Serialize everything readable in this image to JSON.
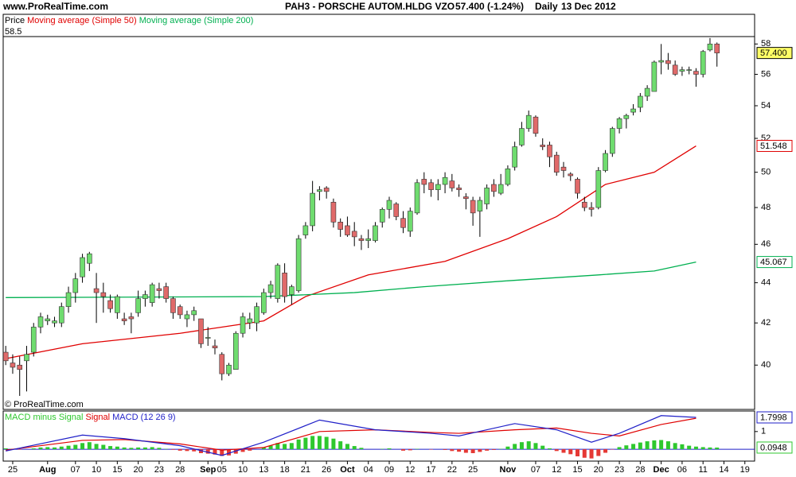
{
  "header": {
    "site": "www.ProRealTime.com",
    "symbol": "PAH3 - PORSCHE AUTOM.HLDG VZO",
    "quote": "57.400 (-1.24%)",
    "period": "Daily",
    "date": "13 Dec 2012"
  },
  "chart_data": [
    {
      "type": "candlestick",
      "price_name": "Price",
      "watermark": "© ProRealTime.com",
      "log_scale": true,
      "up_color": "#6fdc6f",
      "down_color": "#e06a6a",
      "ylim": [
        38,
        58.5
      ],
      "yticks": [
        40,
        42,
        44,
        46,
        48,
        50,
        52,
        54,
        56,
        58
      ],
      "last_label": {
        "value": 57.4,
        "label": "57.400"
      },
      "categories": [
        null,
        "25",
        null,
        null,
        null,
        null,
        "Aug",
        null,
        null,
        null,
        "07",
        null,
        null,
        "10",
        null,
        null,
        "15",
        null,
        null,
        "20",
        null,
        null,
        "23",
        null,
        null,
        "28",
        null,
        null,
        null,
        "Sep",
        null,
        "05",
        null,
        null,
        "10",
        null,
        null,
        "13",
        null,
        null,
        "18",
        null,
        null,
        "21",
        null,
        null,
        "26",
        null,
        null,
        "Oct",
        null,
        null,
        "04",
        null,
        null,
        "09",
        null,
        null,
        "12",
        null,
        null,
        "17",
        null,
        null,
        "22",
        null,
        null,
        "25",
        null,
        null,
        null,
        null,
        "Nov",
        null,
        null,
        null,
        "07",
        null,
        null,
        "12",
        null,
        null,
        "15",
        null,
        null,
        "20",
        null,
        null,
        "23",
        null,
        null,
        "28",
        null,
        null,
        "Dec",
        null,
        null,
        "06",
        null,
        null,
        "11",
        null,
        null,
        "14",
        null,
        null,
        "19"
      ],
      "open": [
        40.6,
        40.1,
        40.0,
        40.2,
        40.6,
        41.8,
        42.1,
        42.0,
        42.0,
        42.8,
        43.5,
        44.3,
        45.0,
        43.7,
        43.5,
        43.1,
        42.5,
        42.2,
        42.3,
        42.5,
        43.2,
        43.0,
        43.7,
        43.8,
        43.2,
        42.8,
        42.2,
        42.4,
        42.2,
        41.3,
        40.9,
        40.5,
        39.6,
        39.8,
        41.5,
        42.0,
        42.0,
        42.5,
        43.5,
        43.2,
        44.5,
        43.4,
        43.6,
        46.5,
        47.0,
        48.9,
        49.1,
        48.3,
        47.2,
        47.0,
        46.7,
        46.3,
        46.2,
        46.2,
        47.2,
        47.9,
        48.2,
        47.4,
        46.7,
        47.7,
        49.6,
        49.4,
        49.0,
        49.3,
        49.5,
        49.1,
        48.6,
        48.4,
        47.8,
        48.2,
        49.3,
        48.8,
        49.3,
        50.3,
        51.6,
        52.6,
        53.3,
        51.6,
        51.6,
        51.0,
        50.3,
        49.9,
        49.6,
        48.3,
        48.0,
        48.0,
        50.1,
        51.1,
        52.6,
        53.2,
        53.6,
        53.9,
        54.6,
        54.9,
        56.8,
        56.9,
        56.6,
        56.2,
        56.3,
        56.2,
        56.0,
        57.6,
        58.0,
        null,
        null,
        null,
        null
      ],
      "high": [
        40.9,
        40.5,
        40.4,
        40.9,
        42.0,
        42.5,
        42.4,
        42.3,
        43.0,
        43.8,
        44.5,
        45.5,
        45.6,
        44.5,
        44.0,
        43.4,
        43.4,
        42.5,
        42.5,
        43.6,
        43.6,
        44.0,
        44.0,
        44.0,
        43.3,
        42.9,
        42.6,
        42.8,
        42.2,
        41.8,
        41.2,
        40.6,
        40.1,
        41.6,
        42.5,
        42.5,
        43.0,
        43.7,
        44.1,
        45.0,
        45.0,
        43.9,
        46.5,
        47.2,
        49.5,
        49.2,
        49.2,
        48.5,
        47.4,
        47.5,
        47.2,
        46.5,
        46.8,
        47.2,
        48.0,
        48.6,
        48.3,
        47.8,
        48.0,
        49.6,
        50.0,
        49.6,
        49.6,
        50.0,
        49.9,
        49.3,
        48.8,
        48.6,
        48.6,
        49.3,
        49.6,
        49.9,
        50.4,
        51.8,
        53.0,
        53.7,
        53.4,
        52.0,
        51.8,
        51.2,
        50.6,
        50.0,
        49.7,
        48.6,
        48.3,
        50.3,
        51.3,
        52.7,
        53.3,
        53.5,
        54.1,
        54.8,
        55.3,
        56.9,
        58.0,
        57.4,
        56.9,
        56.5,
        56.5,
        56.4,
        57.6,
        58.4,
        58.1,
        null,
        null,
        null,
        null
      ],
      "low": [
        40.0,
        39.6,
        38.6,
        38.8,
        40.4,
        41.5,
        41.9,
        41.8,
        41.8,
        42.5,
        43.0,
        44.0,
        44.6,
        42.0,
        42.5,
        42.5,
        42.2,
        41.9,
        41.5,
        42.3,
        42.8,
        42.8,
        43.2,
        43.0,
        42.2,
        42.2,
        41.8,
        42.1,
        40.8,
        40.9,
        40.5,
        39.3,
        39.5,
        39.8,
        41.3,
        41.7,
        41.6,
        42.4,
        43.2,
        43.0,
        43.0,
        42.9,
        43.5,
        46.3,
        46.7,
        48.4,
        48.5,
        46.9,
        46.4,
        46.4,
        45.9,
        45.7,
        45.8,
        46.1,
        46.9,
        47.4,
        47.3,
        46.6,
        46.4,
        47.6,
        48.8,
        48.6,
        48.4,
        48.8,
        48.9,
        48.6,
        47.9,
        47.0,
        46.4,
        47.9,
        48.6,
        48.7,
        49.2,
        50.1,
        51.5,
        52.4,
        52.1,
        51.3,
        50.3,
        49.8,
        49.7,
        49.5,
        48.5,
        47.8,
        47.5,
        47.9,
        50.0,
        50.9,
        52.3,
        52.6,
        53.4,
        53.6,
        54.3,
        54.9,
        56.0,
        56.3,
        55.9,
        55.9,
        56.0,
        55.2,
        55.8,
        57.5,
        56.5,
        null,
        null,
        null,
        null
      ],
      "close": [
        40.2,
        39.9,
        39.8,
        40.5,
        41.8,
        42.3,
        42.2,
        42.1,
        42.8,
        43.5,
        44.2,
        45.3,
        45.5,
        43.5,
        43.3,
        42.7,
        43.3,
        42.1,
        42.2,
        43.2,
        43.4,
        43.9,
        43.6,
        43.2,
        42.5,
        42.4,
        42.4,
        42.6,
        41.0,
        41.3,
        40.8,
        39.6,
        40.0,
        41.5,
        42.3,
        42.2,
        42.8,
        43.5,
        43.9,
        44.9,
        43.3,
        43.8,
        46.3,
        47.0,
        48.8,
        49.0,
        48.9,
        47.2,
        46.8,
        46.5,
        46.4,
        46.2,
        46.3,
        47.0,
        47.9,
        48.4,
        47.5,
        46.9,
        47.8,
        49.4,
        49.3,
        49.0,
        49.3,
        49.7,
        49.1,
        49.0,
        48.5,
        47.7,
        48.4,
        49.1,
        48.9,
        49.3,
        50.2,
        51.5,
        52.6,
        53.4,
        52.3,
        51.5,
        50.9,
        50.0,
        50.1,
        49.8,
        48.8,
        48.0,
        47.9,
        50.1,
        51.1,
        52.6,
        53.2,
        53.4,
        53.8,
        54.6,
        55.1,
        56.8,
        56.9,
        56.7,
        56.0,
        56.3,
        56.3,
        56.0,
        57.5,
        58.0,
        57.4,
        null,
        null,
        null,
        null
      ],
      "series": [
        {
          "name": "Moving average (Simple 50)",
          "color": "#e00000",
          "x": [
            0,
            11,
            25,
            37,
            43,
            52,
            63,
            72,
            79,
            86,
            93,
            99
          ],
          "values": [
            40.3,
            41.0,
            41.5,
            42.1,
            43.3,
            44.4,
            45.1,
            46.3,
            47.5,
            49.3,
            50.0,
            51.548
          ],
          "last_label": {
            "value": 51.548,
            "label": "51.548"
          }
        },
        {
          "name": "Moving average (Simple 200)",
          "color": "#00b050",
          "x": [
            0,
            37,
            50,
            60,
            72,
            85,
            93,
            99
          ],
          "values": [
            43.25,
            43.3,
            43.5,
            43.8,
            44.1,
            44.4,
            44.6,
            45.067
          ],
          "last_label": {
            "value": 45.067,
            "label": "45.067"
          }
        }
      ]
    },
    {
      "type": "macd",
      "ylim": [
        -0.67,
        2.16
      ],
      "yticks": [
        1
      ],
      "series": [
        {
          "name": "MACD minus Signal",
          "color": "#2ec82e",
          "negative_color": "#e53935",
          "values": [
            0.05,
            0.02,
            -0.02,
            0.0,
            0.05,
            0.1,
            0.12,
            0.1,
            0.15,
            0.2,
            0.25,
            0.35,
            0.4,
            0.3,
            0.25,
            0.18,
            0.15,
            0.1,
            0.08,
            0.1,
            0.1,
            0.12,
            0.08,
            0.02,
            -0.03,
            -0.08,
            -0.1,
            -0.12,
            -0.22,
            -0.25,
            -0.3,
            -0.38,
            -0.35,
            -0.25,
            -0.15,
            -0.08,
            0.0,
            0.1,
            0.2,
            0.35,
            0.3,
            0.35,
            0.55,
            0.65,
            0.75,
            0.75,
            0.7,
            0.6,
            0.45,
            0.3,
            0.18,
            0.08,
            0.0,
            0.0,
            0.02,
            0.05,
            0.0,
            -0.08,
            -0.06,
            0.02,
            0.0,
            -0.02,
            0.0,
            -0.04,
            -0.1,
            -0.14,
            -0.2,
            -0.22,
            -0.15,
            -0.08,
            -0.04,
            0.02,
            0.15,
            0.3,
            0.4,
            0.45,
            0.35,
            0.2,
            0.05,
            -0.1,
            -0.2,
            -0.28,
            -0.4,
            -0.48,
            -0.52,
            -0.38,
            -0.2,
            -0.02,
            0.12,
            0.22,
            0.3,
            0.38,
            0.45,
            0.5,
            0.52,
            0.45,
            0.35,
            0.28,
            0.2,
            0.15,
            0.12,
            0.1,
            0.0948,
            null,
            null,
            null,
            null
          ],
          "last_label": {
            "value": 0.0948,
            "label": "0.0948"
          }
        },
        {
          "name": "Signal",
          "color": "#e00000",
          "x": [
            0,
            11,
            17,
            25,
            31,
            37,
            45,
            53,
            61,
            65,
            73,
            79,
            84,
            88,
            94,
            99
          ],
          "values": [
            -0.05,
            0.5,
            0.55,
            0.3,
            -0.05,
            0.1,
            1.0,
            1.1,
            0.95,
            0.9,
            1.1,
            1.2,
            0.9,
            0.75,
            1.4,
            1.75
          ]
        },
        {
          "name": "MACD (12 26 9)",
          "color": "#1f1fc8",
          "x": [
            0,
            11,
            17,
            25,
            31,
            37,
            45,
            53,
            61,
            65,
            73,
            79,
            84,
            88,
            94,
            99
          ],
          "values": [
            -0.1,
            0.8,
            0.6,
            0.2,
            -0.35,
            0.4,
            1.65,
            1.1,
            0.9,
            0.75,
            1.45,
            1.1,
            0.4,
            0.9,
            1.9,
            1.7998
          ],
          "last_label": {
            "value": 1.7998,
            "label": "1.7998"
          }
        }
      ]
    }
  ]
}
